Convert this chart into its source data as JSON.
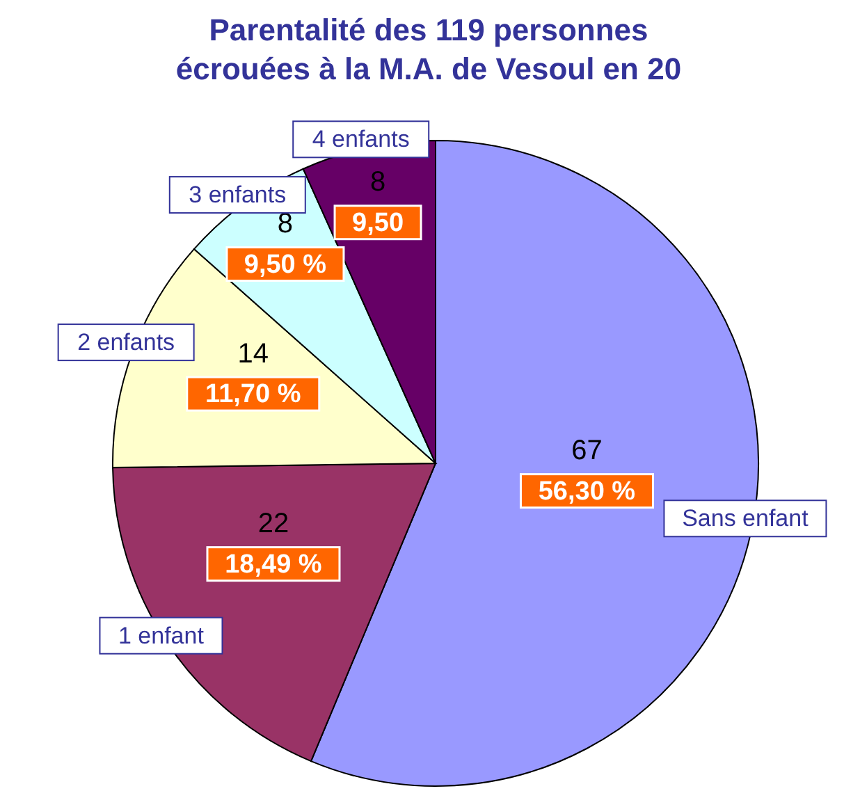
{
  "chart_data": {
    "type": "pie",
    "title": "Parentalité des 119 personnes",
    "subtitle": "écrouées à la M.A. de Vesoul en 20",
    "categories": [
      "Sans enfant",
      "1 enfant",
      "2 enfants",
      "3 enfants",
      "4 enfants"
    ],
    "values": [
      67,
      22,
      14,
      8,
      8
    ],
    "colors": [
      "#9999ff",
      "#993366",
      "#ffffcc",
      "#ccffff",
      "#660066"
    ],
    "data_labels": true,
    "annotations": [
      {
        "text": "56,30 %",
        "x": "Sans enfant"
      },
      {
        "text": "18,49 %",
        "x": "1 enfant"
      },
      {
        "text": "11,70 %",
        "x": "2 enfants"
      },
      {
        "text": "9,50 %",
        "x": "3 enfants"
      },
      {
        "text": "9,50",
        "x": "4 enfants"
      }
    ],
    "legend": false
  }
}
